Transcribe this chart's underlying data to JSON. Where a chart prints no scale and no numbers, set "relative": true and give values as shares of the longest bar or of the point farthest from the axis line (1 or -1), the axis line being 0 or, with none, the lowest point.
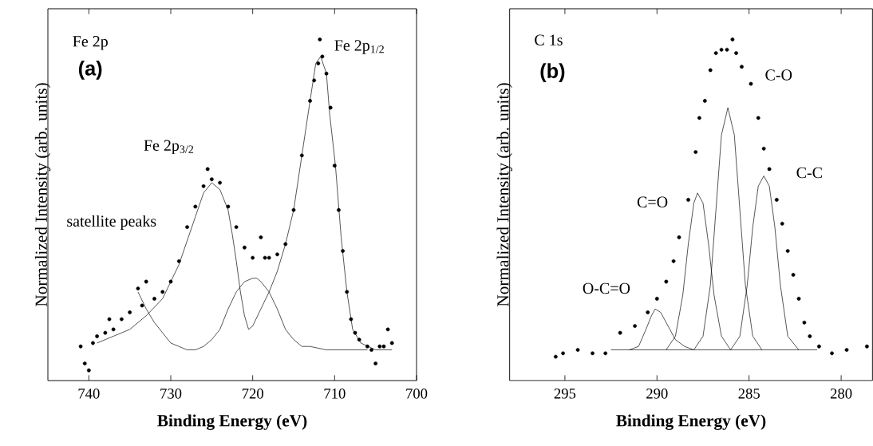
{
  "chart_data": [
    {
      "type": "scatter",
      "relative": true,
      "marker": "circle",
      "xlabel": "Binding Energy (eV)",
      "ylabel": "Normalized Intensity (arb. units)",
      "xlim": [
        745,
        700
      ],
      "xticks": [
        740,
        730,
        720,
        710,
        700
      ],
      "annotations": [
        "Fe 2p",
        "(a)",
        "Fe 2p$_{1/2}$",
        "Fe 2p$_{3/2}$",
        "satellite peaks"
      ],
      "series": [
        {
          "color": "#000000",
          "x": [
            741,
            740.5,
            740,
            739.5,
            739,
            738,
            737.5,
            737,
            736,
            735,
            734,
            733.5,
            733,
            732,
            731,
            730,
            729,
            728,
            727,
            726,
            725.5,
            725,
            724,
            723,
            722,
            721,
            720,
            719,
            718.5,
            718,
            717,
            716,
            715,
            714,
            713,
            712.5,
            712,
            711.8,
            711.5,
            711,
            710.5,
            710,
            709.5,
            709,
            708.5,
            708,
            707.5,
            707,
            706,
            705.5,
            705,
            704.5,
            704,
            703.5,
            703
          ],
          "values": [
            0.1,
            0.05,
            0.03,
            0.11,
            0.13,
            0.14,
            0.18,
            0.15,
            0.18,
            0.2,
            0.27,
            0.22,
            0.29,
            0.24,
            0.26,
            0.29,
            0.35,
            0.45,
            0.51,
            0.57,
            0.62,
            0.59,
            0.58,
            0.51,
            0.45,
            0.39,
            0.36,
            0.42,
            0.36,
            0.36,
            0.37,
            0.4,
            0.5,
            0.66,
            0.82,
            0.88,
            0.93,
            1.0,
            0.95,
            0.9,
            0.8,
            0.63,
            0.5,
            0.38,
            0.26,
            0.18,
            0.14,
            0.12,
            0.1,
            0.09,
            0.05,
            0.1,
            0.1,
            0.15,
            0.11
          ]
        },
        {
          "type": "line",
          "marker": "none",
          "color": "#000000",
          "x": [
            739,
            737,
            735,
            733,
            731,
            729,
            727,
            726,
            725,
            724,
            723,
            722.5,
            722,
            721.5,
            721,
            720.5,
            720,
            719,
            718,
            717,
            716,
            715,
            714,
            713,
            712.3,
            711.7,
            711,
            710.6,
            709.9,
            709.2,
            708.5,
            707.8,
            706.8,
            705,
            703
          ],
          "values": [
            0.11,
            0.13,
            0.15,
            0.19,
            0.24,
            0.34,
            0.48,
            0.55,
            0.58,
            0.56,
            0.5,
            0.43,
            0.35,
            0.26,
            0.19,
            0.15,
            0.16,
            0.21,
            0.26,
            0.32,
            0.4,
            0.5,
            0.66,
            0.82,
            0.93,
            0.95,
            0.9,
            0.78,
            0.63,
            0.42,
            0.26,
            0.15,
            0.11,
            0.09,
            0.09
          ]
        },
        {
          "type": "line",
          "marker": "none",
          "color": "#000000",
          "x": [
            734,
            733,
            732,
            731,
            730,
            728,
            727,
            726,
            725,
            724,
            723,
            722,
            721,
            720,
            719.5,
            719,
            718,
            717,
            716,
            715,
            714,
            713,
            711,
            706
          ],
          "values": [
            0.26,
            0.21,
            0.17,
            0.14,
            0.11,
            0.09,
            0.09,
            0.1,
            0.12,
            0.15,
            0.21,
            0.26,
            0.29,
            0.3,
            0.3,
            0.29,
            0.26,
            0.21,
            0.15,
            0.12,
            0.1,
            0.1,
            0.09,
            0.09
          ]
        }
      ]
    },
    {
      "type": "scatter",
      "relative": true,
      "marker": "circle",
      "xlabel": "Binding Energy (eV)",
      "ylabel": "Normalized Intensity (arb. units)",
      "xlim": [
        298,
        278.3
      ],
      "xticks": [
        295,
        290,
        285,
        280
      ],
      "annotations": [
        "C 1s",
        "(b)",
        "C-O",
        "C-C",
        "C=O",
        "O-C=O"
      ],
      "series": [
        {
          "color": "#000000",
          "x": [
            295.5,
            295.1,
            294.3,
            293.5,
            292.8,
            292.0,
            291.2,
            290.5,
            290.0,
            289.5,
            289.1,
            288.8,
            288.3,
            287.9,
            287.7,
            287.4,
            287.1,
            286.8,
            286.5,
            286.2,
            285.9,
            285.7,
            285.4,
            284.9,
            284.5,
            284.2,
            283.9,
            283.5,
            283.2,
            282.9,
            282.6,
            282.3,
            282.0,
            281.7,
            281.2,
            280.5,
            279.7,
            278.6
          ],
          "values": [
            0.07,
            0.08,
            0.09,
            0.08,
            0.08,
            0.14,
            0.16,
            0.2,
            0.24,
            0.29,
            0.35,
            0.42,
            0.53,
            0.67,
            0.77,
            0.82,
            0.91,
            0.96,
            0.97,
            0.97,
            1.0,
            0.96,
            0.92,
            0.87,
            0.77,
            0.68,
            0.62,
            0.53,
            0.46,
            0.38,
            0.31,
            0.24,
            0.17,
            0.13,
            0.1,
            0.08,
            0.09,
            0.1
          ]
        },
        {
          "type": "line",
          "marker": "none",
          "color": "#000000",
          "x": [
            292.5,
            281.3
          ],
          "values": [
            0.09,
            0.09
          ]
        },
        {
          "type": "line",
          "marker": "none",
          "color": "#000000",
          "x": [
            291.5,
            291,
            290.6,
            290.3,
            290.1,
            289.8,
            289.4,
            289,
            288.5,
            288
          ],
          "values": [
            0.09,
            0.1,
            0.15,
            0.19,
            0.21,
            0.2,
            0.16,
            0.12,
            0.1,
            0.09
          ]
        },
        {
          "type": "line",
          "marker": "none",
          "color": "#000000",
          "x": [
            289.5,
            289,
            288.6,
            288.3,
            288.0,
            287.8,
            287.5,
            287.2,
            286.9,
            286.5,
            286
          ],
          "values": [
            0.09,
            0.13,
            0.25,
            0.4,
            0.52,
            0.55,
            0.52,
            0.4,
            0.25,
            0.13,
            0.09
          ]
        },
        {
          "type": "line",
          "marker": "none",
          "color": "#000000",
          "x": [
            288,
            287.5,
            287.1,
            286.8,
            286.5,
            286.15,
            285.8,
            285.5,
            285.2,
            284.8,
            284.3
          ],
          "values": [
            0.09,
            0.13,
            0.28,
            0.5,
            0.72,
            0.8,
            0.72,
            0.5,
            0.28,
            0.13,
            0.09
          ]
        },
        {
          "type": "line",
          "marker": "none",
          "color": "#000000",
          "x": [
            286,
            285.5,
            285.1,
            284.8,
            284.5,
            284.2,
            283.9,
            283.6,
            283.3,
            282.9,
            282.3
          ],
          "values": [
            0.09,
            0.13,
            0.28,
            0.45,
            0.57,
            0.6,
            0.57,
            0.45,
            0.28,
            0.13,
            0.09
          ]
        }
      ]
    }
  ]
}
